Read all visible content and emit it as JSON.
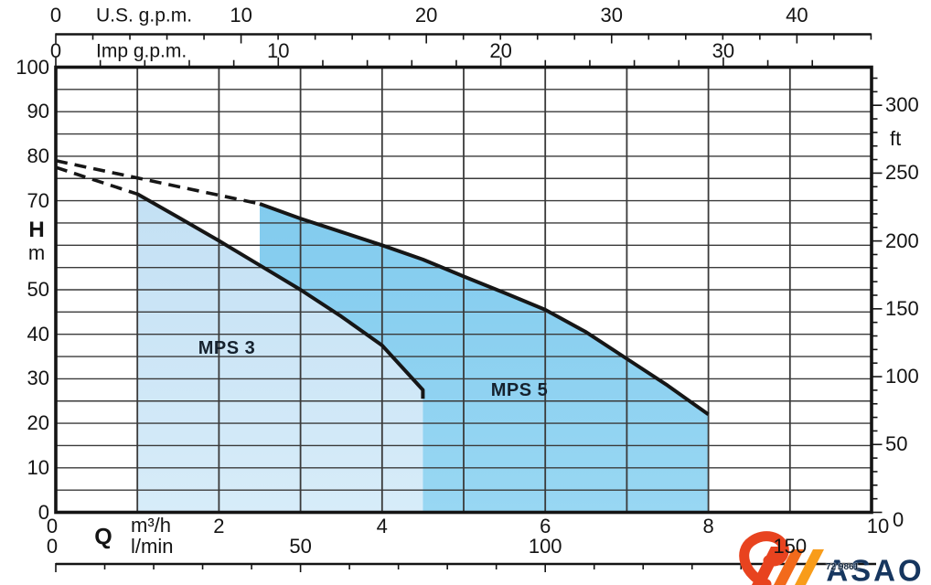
{
  "chart_data": {
    "type": "area",
    "title": "",
    "x_axis": {
      "unit": "m³/h",
      "symbol": "Q",
      "range": [
        0,
        10
      ],
      "grid_step": 1,
      "tick_labels": [
        0,
        2,
        4,
        6,
        8,
        10
      ]
    },
    "x_axis_lmin": {
      "unit": "l/min",
      "to_m3h": 0.06,
      "tick_labels": [
        0,
        50,
        100,
        150
      ],
      "minor_step": 10,
      "minor_max": 160
    },
    "x_axis_us": {
      "unit": "U.S. g.p.m.",
      "to_m3h": 0.22712,
      "tick_labels": [
        0,
        10,
        20,
        30,
        40
      ],
      "minor_step": 2,
      "minor_max": 44
    },
    "x_axis_imp": {
      "unit": "Imp g.p.m.",
      "to_m3h": 0.27276,
      "tick_labels": [
        0,
        10,
        20,
        30
      ],
      "minor_step": 2,
      "minor_max": 34
    },
    "y_axis": {
      "symbol": "H",
      "unit": "m",
      "range": [
        0,
        100
      ],
      "grid_step": 5,
      "tick_labels": [
        100,
        90,
        80,
        70,
        50,
        40,
        30,
        20,
        10,
        0
      ]
    },
    "y_axis_ft": {
      "unit": "ft",
      "to_m": 0.3048,
      "tick_labels": [
        300,
        250,
        200,
        150,
        100,
        50,
        0
      ],
      "minor_step": 10,
      "minor_max": 320
    },
    "series": [
      {
        "name": "MPS 3",
        "dashed": [
          [
            0,
            77.5
          ],
          [
            1,
            71.5
          ]
        ],
        "solid": [
          [
            1,
            71.5
          ],
          [
            1.5,
            66.3
          ],
          [
            2,
            61
          ],
          [
            2.5,
            55.5
          ],
          [
            3,
            50
          ],
          [
            3.5,
            44
          ],
          [
            4,
            37.5
          ],
          [
            4.5,
            27.5
          ],
          [
            4.5,
            25.5
          ]
        ],
        "region": [
          [
            1,
            0
          ],
          [
            1,
            71.5
          ],
          [
            1.5,
            66.3
          ],
          [
            2,
            61
          ],
          [
            2.5,
            55.5
          ],
          [
            3,
            50
          ],
          [
            3.5,
            44
          ],
          [
            4,
            37.5
          ],
          [
            4.5,
            27.5
          ],
          [
            4.5,
            0
          ]
        ]
      },
      {
        "name": "MPS 5",
        "dashed": [
          [
            0,
            79
          ],
          [
            2.5,
            69.3
          ]
        ],
        "solid": [
          [
            2.5,
            69.3
          ],
          [
            3,
            66
          ],
          [
            3.5,
            63
          ],
          [
            4,
            60
          ],
          [
            4.5,
            56.8
          ],
          [
            5,
            53
          ],
          [
            5.5,
            49.3
          ],
          [
            6,
            45.5
          ],
          [
            6.5,
            40.5
          ],
          [
            7,
            34.5
          ],
          [
            7.5,
            28.5
          ],
          [
            8,
            22
          ]
        ],
        "region": [
          [
            2.5,
            55.5
          ],
          [
            2.5,
            69.3
          ],
          [
            3,
            66
          ],
          [
            3.5,
            63
          ],
          [
            4,
            60
          ],
          [
            4.5,
            56.8
          ],
          [
            5,
            53
          ],
          [
            5.5,
            49.3
          ],
          [
            6,
            45.5
          ],
          [
            6.5,
            40.5
          ],
          [
            7,
            34.5
          ],
          [
            7.5,
            28.5
          ],
          [
            8,
            22
          ],
          [
            8,
            0
          ],
          [
            4.5,
            0
          ],
          [
            4.5,
            27.5
          ],
          [
            4,
            37.5
          ],
          [
            3.5,
            44
          ],
          [
            3,
            50
          ]
        ]
      }
    ],
    "legend_position": "inside-regions",
    "grid": true
  },
  "colors": {
    "region_light_top": "#c3e0f4",
    "region_light_bottom": "#d7ecf9",
    "region_dark_top": "#82cbee",
    "region_dark_bottom": "#98d7f3",
    "curve": "#161616",
    "grid": "#3a3a3a",
    "border": "#141414",
    "text": "#141414",
    "region_label": "#16222e",
    "logo_navy": "#16365f",
    "logo_red": "#e8431f",
    "logo_orange1": "#f26a1b",
    "logo_orange2": "#f89c1a"
  },
  "logo": {
    "brand": "ASAO",
    "code": "72 9861"
  }
}
